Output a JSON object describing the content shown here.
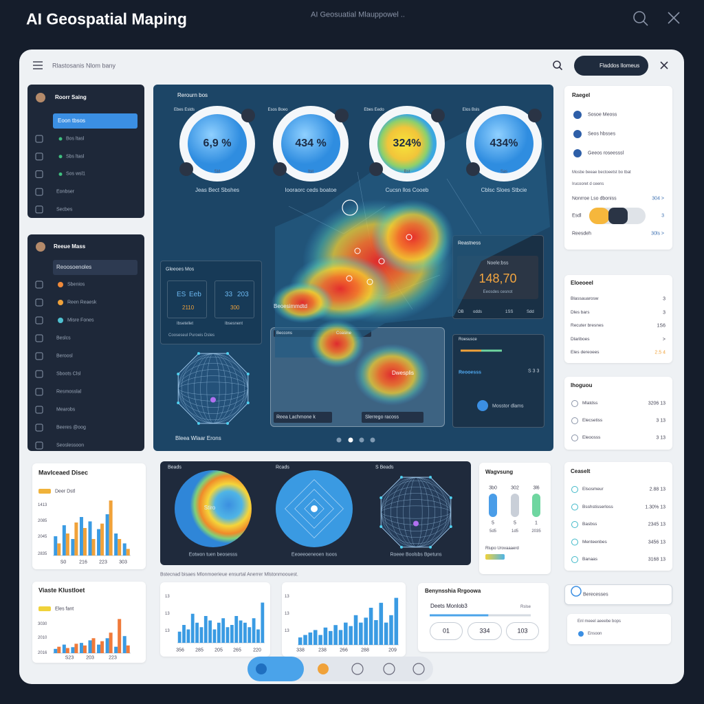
{
  "header": {
    "title": "AI Geospatial Maping",
    "subtitle": "AI Geosuatial Mlauppowel .."
  },
  "toolbar": {
    "breadcrumb": "Rlastosanis Nlom bany",
    "button": "Fladdos llomeus"
  },
  "sidebar_top": {
    "title": "Roorr Saing",
    "select": "Eoon tbsos",
    "items": [
      "Bos ltasl",
      "Sbs ltasl",
      "Sos wsl1",
      "Eonbser",
      "Secbes"
    ]
  },
  "sidebar_bottom": {
    "title": "Reeue Mass",
    "select": "Reoosoenoles",
    "items": [
      "Sbenios",
      "Reen Reaesk",
      "Misre Fones",
      "Beslcs",
      "Beroosl",
      "Sboots Clsl",
      "Resmosslal",
      "Mearobs",
      "Beeres @oog",
      "Seoslessoon"
    ]
  },
  "map": {
    "title": "Rerourn bos",
    "gauges": [
      {
        "tag": "Ebes Eslds",
        "value": "6,9 %",
        "sub": "Sld",
        "caption": "Jeas Bect Sbshes"
      },
      {
        "tag": "Esos Boeo",
        "value": "434 %",
        "sub": "Itst",
        "caption": "Iooraorc ceds boatoe"
      },
      {
        "tag": "Ebes Eedo",
        "value": "324%",
        "sub": "Bst",
        "caption": "Cucsn llos Cooeb"
      },
      {
        "tag": "Elos Bsls",
        "value": "434%",
        "sub": "Sas",
        "caption": "Cblsc Sloes Stbcie"
      }
    ],
    "left_card": {
      "title": "Gleeoes Mos",
      "cells": [
        {
          "a": "ES",
          "b": "Eeb",
          "c": "2110"
        },
        {
          "a": "33",
          "b": "203",
          "c": "300"
        }
      ],
      "labels": [
        "Ibsetellet",
        "Ibsesnent"
      ],
      "footer": "Cooseseul Puroeis Dsles"
    },
    "right_card": {
      "title": "Reastness",
      "sub": "Noele:bss",
      "value": "148,70",
      "note": "Eeosdes cesnot",
      "foot": [
        "OB",
        "odds",
        "1SS",
        "Sdd"
      ]
    },
    "heat_label": "Beoesimmdtd",
    "bottom_label": "Bleea Wlaar Erons",
    "inset": {
      "top": [
        "Beccons",
        "Coasine"
      ],
      "spot": "Dwesplis",
      "labels": [
        "Reea Lachmone k",
        "Slerrego racoss"
      ]
    },
    "spike_card": {
      "title": "Roesusce",
      "label": "Reooesss",
      "nums": "S 3 3",
      "button": "Mosstor dlams"
    }
  },
  "right_panel": {
    "settings": {
      "title": "Raegel",
      "items": [
        "Sosoe Meoss",
        "Seos hbsses",
        "Geeos roseesssl"
      ],
      "note": [
        "Mosbe beeae bectoeetst bo tbat",
        "Irucooret d ceens"
      ],
      "rows": [
        {
          "label": "Nonrroe Lso dboniss",
          "value": "304 >"
        },
        {
          "label": "Esdl",
          "value": "3"
        },
        {
          "label": "Reesdeh",
          "value": "30ls >"
        }
      ]
    },
    "lists": [
      {
        "title": "Eloeoeel",
        "rows": [
          [
            "Blassauarosw",
            "3"
          ],
          [
            "Dles bars",
            "3"
          ],
          [
            "Recuter bresnes",
            "1S6"
          ],
          [
            "Dlariboes",
            ">"
          ],
          [
            "Eles dereoees",
            "2.5 4"
          ]
        ]
      },
      {
        "title": "Ihoguou",
        "rows": [
          [
            "Mlatdss",
            "3206 13"
          ],
          [
            "Elecsetiss",
            "3 13"
          ],
          [
            "Eleoosss",
            "3 13"
          ]
        ]
      },
      {
        "title": "Ceaselt",
        "rows": [
          [
            "Elsosmeur",
            "2.88 13"
          ],
          [
            "Bsshstisserloss",
            "1.30% 13"
          ],
          [
            "Basbss",
            "2345 13"
          ],
          [
            "Menteenbes",
            "3456 13"
          ],
          [
            "Banaas",
            "3168 13"
          ]
        ]
      }
    ],
    "select": "Berecesses",
    "footer": {
      "title": "Enl meeel aeeebe bops",
      "link": "Ensoon"
    }
  },
  "charts": {
    "a": {
      "type": "bar",
      "title": "Mavlceaed Disec",
      "legend": "Deer Dstl",
      "y_labels": [
        "1413",
        "2085",
        "2045",
        "2835"
      ],
      "x_labels": [
        "S0",
        "216",
        "223",
        "303"
      ],
      "ylim": [
        0,
        100
      ],
      "series": [
        {
          "color": "#3a9be3",
          "values": [
            35,
            55,
            30,
            70,
            62,
            48,
            75,
            40,
            22
          ]
        },
        {
          "color": "#f0a23a",
          "values": [
            22,
            40,
            60,
            50,
            30,
            58,
            100,
            30,
            12
          ]
        }
      ]
    },
    "d": {
      "type": "bar",
      "title": "Viaste Klustloet",
      "legend": "Eles fant",
      "y_labels": [
        "3030",
        "2010",
        "2016"
      ],
      "x_labels": [
        "S23",
        "203",
        "223"
      ],
      "ylim": [
        0,
        100
      ],
      "series": [
        {
          "color": "#3a9be3",
          "values": [
            10,
            20,
            14,
            24,
            30,
            20,
            35,
            15,
            40
          ]
        },
        {
          "color": "#f07a3a",
          "values": [
            15,
            12,
            22,
            18,
            35,
            28,
            48,
            80,
            18
          ]
        }
      ]
    },
    "e": {
      "type": "histogram",
      "y_labels": [
        "13",
        "13",
        "13"
      ],
      "x_labels": [
        "356",
        "285",
        "205",
        "265",
        "220"
      ],
      "ylim": [
        0,
        100
      ],
      "color": "#3a9be3",
      "values": [
        25,
        40,
        30,
        65,
        45,
        35,
        60,
        50,
        30,
        45,
        55,
        35,
        40,
        60,
        50,
        45,
        35,
        55,
        30,
        90
      ]
    },
    "f": {
      "type": "histogram",
      "y_labels": [
        "13",
        "13",
        "13"
      ],
      "x_labels": [
        "338",
        "238",
        "266",
        "288",
        "209"
      ],
      "ylim": [
        0,
        100
      ],
      "color": "#3a9be3",
      "values": [
        15,
        20,
        25,
        30,
        20,
        35,
        28,
        40,
        30,
        45,
        38,
        60,
        45,
        55,
        75,
        50,
        85,
        45,
        60,
        95
      ]
    }
  },
  "maps_card": {
    "labels": [
      "Beads",
      "Rcads",
      "S Beads"
    ],
    "center": "Stiro",
    "captions": [
      "Eotwon tuen beosesss",
      "Eeoeeoeneoen Isoos",
      "Roeee Boolsbs Bpetuns"
    ]
  },
  "caption": "Bstecnad bisaes Mlonmoerieue ensurtal Anerrer Mlstonmoouest.",
  "levels_card": {
    "title": "Wagvsung",
    "columns": [
      {
        "top": "3b0",
        "mid": "5",
        "bot": "5d5",
        "color": "#4a9de8"
      },
      {
        "top": "302",
        "mid": "5",
        "bot": "1d5",
        "color": "#c9cfd8"
      },
      {
        "top": "3l6",
        "mid": "1",
        "bot": "2035",
        "color": "#6fd6a0"
      }
    ],
    "foot": "Rlupo Urovaaaerd"
  },
  "progress_card": {
    "title": "Benynsshia Rrgoowa",
    "label": "Deets Monlob3",
    "side": "Rslse",
    "progress": 58,
    "buttons": [
      "01",
      "334",
      "103"
    ]
  }
}
